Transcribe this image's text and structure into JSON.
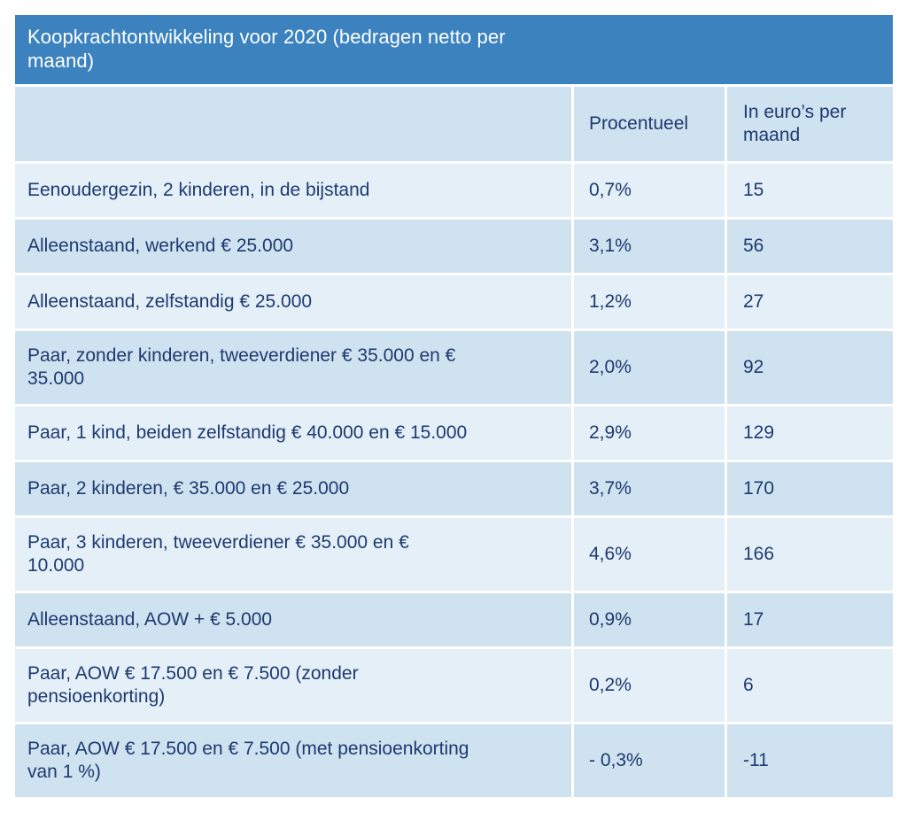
{
  "colors": {
    "title_bar_bg": "#3b82be",
    "title_text": "#ffffff",
    "row_light_bg": "#e4eff7",
    "row_dark_bg": "#cee2ef",
    "cell_text": "#1e3a70",
    "gap_lines": "#ffffff"
  },
  "table": {
    "title": "Koopkrachtontwikkeling voor 2020 (bedragen netto per maand)",
    "columns": [
      "",
      "Procentueel",
      "In euro’s per maand"
    ],
    "rows": [
      {
        "label": "Eenoudergezin, 2 kinderen, in de bijstand",
        "procentueel": "0,7%",
        "euros_per_maand": "15"
      },
      {
        "label": "Alleenstaand, werkend € 25.000",
        "procentueel": "3,1%",
        "euros_per_maand": "56"
      },
      {
        "label": "Alleenstaand, zelfstandig € 25.000",
        "procentueel": "1,2%",
        "euros_per_maand": "27"
      },
      {
        "label": "Paar, zonder kinderen, tweeverdiener € 35.000 en € 35.000",
        "procentueel": "2,0%",
        "euros_per_maand": "92"
      },
      {
        "label": "Paar, 1 kind, beiden zelfstandig € 40.000 en € 15.000",
        "procentueel": "2,9%",
        "euros_per_maand": "129"
      },
      {
        "label": "Paar, 2 kinderen, € 35.000 en € 25.000",
        "procentueel": "3,7%",
        "euros_per_maand": "170"
      },
      {
        "label": "Paar, 3 kinderen, tweeverdiener € 35.000 en € 10.000",
        "procentueel": "4,6%",
        "euros_per_maand": "166"
      },
      {
        "label": "Alleenstaand, AOW + € 5.000",
        "procentueel": "0,9%",
        "euros_per_maand": "17"
      },
      {
        "label": "Paar, AOW € 17.500 en € 7.500 (zonder pensioenkorting)",
        "procentueel": "0,2%",
        "euros_per_maand": "6"
      },
      {
        "label": "Paar, AOW € 17.500 en € 7.500 (met pensioenkorting van 1 %)",
        "procentueel": "- 0,3%",
        "euros_per_maand": "-11"
      }
    ]
  },
  "chart_data": {
    "type": "table",
    "title": "Koopkrachtontwikkeling voor 2020 (bedragen netto per maand)",
    "columns": [
      "",
      "Procentueel",
      "In euro’s per maand"
    ],
    "rows": [
      [
        "Eenoudergezin, 2 kinderen, in de bijstand",
        "0,7%",
        15
      ],
      [
        "Alleenstaand, werkend € 25.000",
        "3,1%",
        56
      ],
      [
        "Alleenstaand, zelfstandig € 25.000",
        "1,2%",
        27
      ],
      [
        "Paar, zonder kinderen, tweeverdiener € 35.000 en € 35.000",
        "2,0%",
        92
      ],
      [
        "Paar, 1 kind, beiden zelfstandig € 40.000 en € 15.000",
        "2,9%",
        129
      ],
      [
        "Paar, 2 kinderen, € 35.000 en € 25.000",
        "3,7%",
        170
      ],
      [
        "Paar, 3 kinderen, tweeverdiener € 35.000 en € 10.000",
        "4,6%",
        166
      ],
      [
        "Alleenstaand, AOW + € 5.000",
        "0,9%",
        17
      ],
      [
        "Paar, AOW € 17.500 en € 7.500 (zonder pensioenkorting)",
        "0,2%",
        6
      ],
      [
        "Paar, AOW € 17.500 en € 7.500 (met pensioenkorting van 1 %)",
        "- 0,3%",
        -11
      ]
    ],
    "notes": {
      "percent_values_numeric": [
        0.7,
        3.1,
        1.2,
        2.0,
        2.9,
        3.7,
        4.6,
        0.9,
        0.2,
        -0.3
      ],
      "euro_values_numeric": [
        15,
        56,
        27,
        92,
        129,
        170,
        166,
        17,
        6,
        -11
      ],
      "row_shading": "alternating light/dark starting light; column header row dark"
    }
  }
}
